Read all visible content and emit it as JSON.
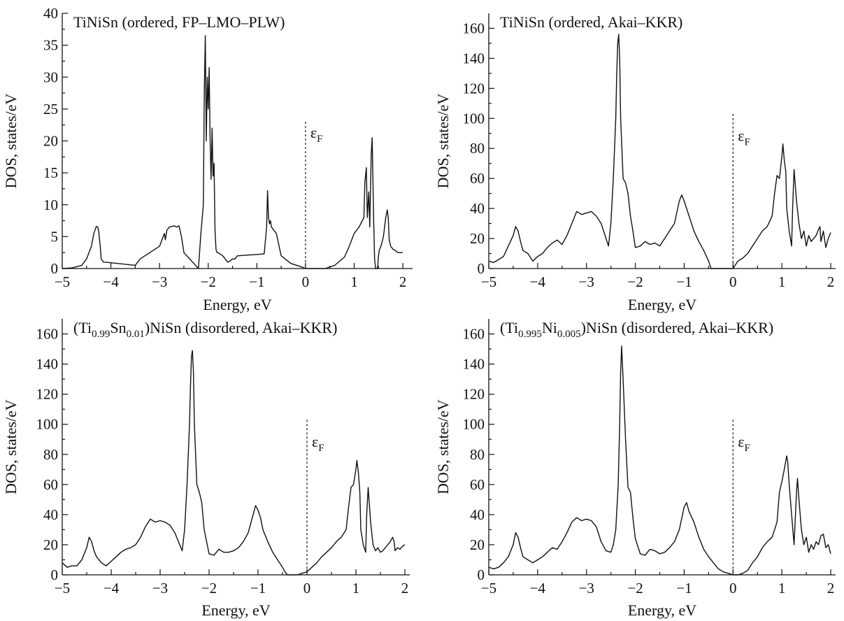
{
  "chart_data": [
    {
      "type": "line",
      "title": "TiNiSn (ordered, FP–LMO–PLW)",
      "title_parts": [
        {
          "text": "TiNiSn (ordered, FP–LMO–PLW)"
        }
      ],
      "xlabel": "Energy, eV",
      "ylabel": "DOS, states/eV",
      "xlim": [
        -5,
        2.2
      ],
      "ylim": [
        0,
        40
      ],
      "xticks": [
        -5,
        -4,
        -3,
        -2,
        -1,
        0,
        1,
        2
      ],
      "xtick_labels": [
        "−5",
        "−4",
        "−3",
        "−2",
        "−1",
        "0",
        "1",
        "2"
      ],
      "yticks": [
        0,
        5,
        10,
        15,
        20,
        25,
        30,
        35,
        40
      ],
      "ytick_labels": [
        "0",
        "5",
        "10",
        "15",
        "20",
        "25",
        "30",
        "35",
        "40"
      ],
      "fermi": {
        "x": 0,
        "y_top": 23,
        "label": "ε",
        "label_sub": "F",
        "label_x": 0.1,
        "label_y": 20.5
      },
      "x": [
        -5.0,
        -4.8,
        -4.6,
        -4.5,
        -4.4,
        -4.35,
        -4.3,
        -4.27,
        -4.25,
        -4.22,
        -4.2,
        -4.15,
        -4.1,
        -3.5,
        -3.4,
        -3.2,
        -3.0,
        -2.9,
        -2.88,
        -2.85,
        -2.8,
        -2.7,
        -2.65,
        -2.6,
        -2.55,
        -2.5,
        -2.2,
        -2.15,
        -2.1,
        -2.08,
        -2.06,
        -2.04,
        -2.02,
        -2.0,
        -1.98,
        -1.96,
        -1.94,
        -1.92,
        -1.9,
        -1.88,
        -1.86,
        -1.84,
        -1.82,
        -1.8,
        -1.7,
        -1.65,
        -1.6,
        -1.55,
        -1.5,
        -1.45,
        -1.4,
        -1.2,
        -1.0,
        -0.85,
        -0.8,
        -0.78,
        -0.76,
        -0.74,
        -0.72,
        -0.7,
        -0.65,
        -0.6,
        -0.5,
        -0.3,
        -0.1,
        0.0,
        0.4,
        0.6,
        0.8,
        0.9,
        1.0,
        1.1,
        1.2,
        1.22,
        1.25,
        1.27,
        1.3,
        1.32,
        1.35,
        1.37,
        1.4,
        1.42,
        1.44,
        1.46,
        1.48,
        1.5,
        1.52,
        1.55,
        1.6,
        1.65,
        1.68,
        1.7,
        1.72,
        1.75,
        1.8,
        1.85,
        1.9,
        2.0
      ],
      "series": [
        {
          "values": [
            0.0,
            0.1,
            0.5,
            1.5,
            3.5,
            5.5,
            6.6,
            6.5,
            5.8,
            3.5,
            1.5,
            1.0,
            1.0,
            0.5,
            1.5,
            2.5,
            3.5,
            5.5,
            4.5,
            6.0,
            6.5,
            6.7,
            6.5,
            6.7,
            5.0,
            2.5,
            0.0,
            5.5,
            10.0,
            28.0,
            36.5,
            20.0,
            30.0,
            25.0,
            31.5,
            20.0,
            14.0,
            22.0,
            14.5,
            16.5,
            6.0,
            3.0,
            2.5,
            2.5,
            2.0,
            1.5,
            1.0,
            1.2,
            1.5,
            1.5,
            2.0,
            2.1,
            2.2,
            2.3,
            6.5,
            12.2,
            8.0,
            7.0,
            7.5,
            6.5,
            6.0,
            5.5,
            2.0,
            0.8,
            0.3,
            0.0,
            0.0,
            0.5,
            1.8,
            3.5,
            5.5,
            6.5,
            8.0,
            13.5,
            15.8,
            8.0,
            12.0,
            6.5,
            18.0,
            20.5,
            8.0,
            1.5,
            0.0,
            0.0,
            0.0,
            2.0,
            3.0,
            3.5,
            5.0,
            8.0,
            9.2,
            8.0,
            4.5,
            3.5,
            3.0,
            2.8,
            2.5,
            2.5
          ]
        }
      ]
    },
    {
      "type": "line",
      "title": "TiNiSn (ordered, Akai–KKR)",
      "title_parts": [
        {
          "text": "TiNiSn (ordered, Akai–KKR)"
        }
      ],
      "xlabel": "Energy, eV",
      "ylabel": "DOS, states/eV",
      "xlim": [
        -5,
        2.1
      ],
      "ylim": [
        0,
        170
      ],
      "xticks": [
        -5,
        -4,
        -3,
        -2,
        -1,
        0,
        1,
        2
      ],
      "xtick_labels": [
        "−5",
        "−4",
        "−3",
        "−2",
        "−1",
        "0",
        "1",
        "2"
      ],
      "yticks": [
        0,
        20,
        40,
        60,
        80,
        100,
        120,
        140,
        160
      ],
      "ytick_labels": [
        "0",
        "20",
        "40",
        "60",
        "80",
        "100",
        "120",
        "140",
        "160"
      ],
      "fermi": {
        "x": 0,
        "y_top": 103,
        "label": "ε",
        "label_sub": "F",
        "label_x": 0.1,
        "label_y": 85
      },
      "x": [
        -5.0,
        -4.9,
        -4.8,
        -4.7,
        -4.6,
        -4.5,
        -4.45,
        -4.4,
        -4.35,
        -4.3,
        -4.2,
        -4.1,
        -4.0,
        -3.9,
        -3.8,
        -3.7,
        -3.6,
        -3.5,
        -3.4,
        -3.3,
        -3.2,
        -3.1,
        -3.0,
        -2.9,
        -2.8,
        -2.7,
        -2.6,
        -2.55,
        -2.5,
        -2.45,
        -2.4,
        -2.38,
        -2.36,
        -2.34,
        -2.32,
        -2.3,
        -2.25,
        -2.2,
        -2.15,
        -2.1,
        -2.05,
        -2.0,
        -1.9,
        -1.8,
        -1.7,
        -1.6,
        -1.5,
        -1.4,
        -1.3,
        -1.2,
        -1.1,
        -1.05,
        -1.0,
        -0.95,
        -0.9,
        -0.8,
        -0.7,
        -0.6,
        -0.5,
        -0.45,
        -0.4,
        -0.2,
        -0.1,
        0.0,
        0.1,
        0.2,
        0.3,
        0.4,
        0.5,
        0.6,
        0.7,
        0.8,
        0.85,
        0.9,
        0.95,
        1.0,
        1.02,
        1.05,
        1.08,
        1.1,
        1.15,
        1.2,
        1.22,
        1.25,
        1.3,
        1.35,
        1.4,
        1.45,
        1.5,
        1.55,
        1.6,
        1.65,
        1.7,
        1.75,
        1.78,
        1.8,
        1.85,
        1.9,
        1.95,
        2.0
      ],
      "series": [
        {
          "values": [
            5.0,
            4.0,
            6.0,
            8.0,
            15.0,
            22.0,
            28.0,
            25.0,
            18.0,
            12.0,
            10.0,
            5.0,
            8.0,
            10.0,
            14.0,
            17.0,
            19.0,
            16.0,
            22.0,
            30.0,
            38.0,
            36.0,
            37.0,
            38.0,
            35.0,
            30.0,
            20.0,
            15.0,
            30.0,
            60.0,
            100.0,
            130.0,
            150.0,
            156.0,
            140.0,
            100.0,
            60.0,
            57.0,
            50.0,
            35.0,
            25.0,
            14.0,
            15.0,
            18.0,
            16.0,
            17.0,
            15.0,
            20.0,
            25.0,
            30.0,
            45.0,
            49.0,
            45.0,
            40.0,
            35.0,
            25.0,
            18.0,
            12.0,
            5.0,
            0.0,
            0.0,
            0.0,
            0.0,
            0.0,
            5.0,
            7.0,
            10.0,
            15.0,
            20.0,
            25.0,
            28.0,
            35.0,
            50.0,
            62.0,
            60.0,
            75.0,
            83.0,
            72.0,
            65.0,
            40.0,
            25.0,
            15.0,
            40.0,
            66.0,
            45.0,
            30.0,
            20.0,
            25.0,
            15.0,
            22.0,
            18.0,
            20.0,
            22.0,
            26.0,
            28.0,
            18.0,
            25.0,
            14.0,
            20.0,
            24.0
          ]
        }
      ]
    },
    {
      "type": "line",
      "title": "(Ti0.99Sn0.01)NiSn (disordered, Akai–KKR)",
      "title_parts": [
        {
          "text": "(Ti"
        },
        {
          "text": "0.99",
          "sub": true
        },
        {
          "text": "Sn"
        },
        {
          "text": "0.01",
          "sub": true
        },
        {
          "text": ")NiSn (disordered, Akai–KKR)"
        }
      ],
      "xlabel": "Energy, eV",
      "ylabel": "DOS, states/eV",
      "xlim": [
        -5,
        2.1
      ],
      "ylim": [
        0,
        170
      ],
      "xticks": [
        -5,
        -4,
        -3,
        -2,
        -1,
        0,
        1,
        2
      ],
      "xtick_labels": [
        "−5",
        "−4",
        "−3",
        "−2",
        "−1",
        "0",
        "1",
        "2"
      ],
      "yticks": [
        0,
        20,
        40,
        60,
        80,
        100,
        120,
        140,
        160
      ],
      "ytick_labels": [
        "0",
        "20",
        "40",
        "60",
        "80",
        "100",
        "120",
        "140",
        "160"
      ],
      "fermi": {
        "x": 0,
        "y_top": 103,
        "label": "ε",
        "label_sub": "F",
        "label_x": 0.1,
        "label_y": 85
      },
      "x": [
        -5.0,
        -4.9,
        -4.8,
        -4.7,
        -4.6,
        -4.5,
        -4.45,
        -4.4,
        -4.35,
        -4.3,
        -4.2,
        -4.1,
        -4.0,
        -3.9,
        -3.8,
        -3.7,
        -3.6,
        -3.5,
        -3.4,
        -3.3,
        -3.2,
        -3.1,
        -3.0,
        -2.9,
        -2.8,
        -2.7,
        -2.6,
        -2.55,
        -2.5,
        -2.45,
        -2.4,
        -2.38,
        -2.36,
        -2.34,
        -2.32,
        -2.3,
        -2.25,
        -2.2,
        -2.15,
        -2.1,
        -2.05,
        -2.0,
        -1.9,
        -1.8,
        -1.7,
        -1.6,
        -1.5,
        -1.4,
        -1.3,
        -1.2,
        -1.1,
        -1.05,
        -1.0,
        -0.95,
        -0.9,
        -0.8,
        -0.7,
        -0.6,
        -0.5,
        -0.45,
        -0.4,
        -0.2,
        -0.1,
        0.0,
        0.1,
        0.2,
        0.3,
        0.4,
        0.5,
        0.6,
        0.7,
        0.8,
        0.85,
        0.9,
        0.95,
        1.0,
        1.02,
        1.05,
        1.08,
        1.1,
        1.15,
        1.2,
        1.22,
        1.25,
        1.3,
        1.35,
        1.4,
        1.45,
        1.5,
        1.55,
        1.6,
        1.65,
        1.7,
        1.75,
        1.78,
        1.8,
        1.85,
        1.9,
        1.95,
        2.0
      ],
      "series": [
        {
          "values": [
            8.0,
            5.0,
            6.0,
            6.0,
            10.0,
            18.0,
            25.0,
            22.0,
            16.0,
            12.0,
            8.0,
            6.0,
            9.0,
            12.0,
            15.0,
            17.0,
            18.0,
            20.0,
            25.0,
            32.0,
            37.0,
            35.0,
            36.0,
            35.0,
            33.0,
            28.0,
            20.0,
            16.0,
            30.0,
            60.0,
            100.0,
            125.0,
            145.0,
            149.0,
            135.0,
            100.0,
            60.0,
            55.0,
            48.0,
            30.0,
            22.0,
            14.0,
            13.0,
            17.0,
            15.0,
            15.0,
            16.0,
            18.0,
            22.0,
            28.0,
            40.0,
            46.0,
            43.0,
            38.0,
            30.0,
            22.0,
            15.0,
            10.0,
            5.0,
            2.0,
            0.0,
            0.0,
            1.0,
            2.0,
            5.0,
            8.0,
            12.0,
            15.0,
            18.0,
            22.0,
            25.0,
            30.0,
            45.0,
            58.0,
            60.0,
            70.0,
            76.0,
            68.0,
            55.0,
            30.0,
            20.0,
            15.0,
            40.0,
            58.0,
            35.0,
            20.0,
            16.0,
            18.0,
            15.0,
            16.0,
            18.0,
            20.0,
            22.0,
            25.0,
            22.0,
            16.0,
            18.0,
            17.0,
            19.0,
            20.0
          ]
        }
      ]
    },
    {
      "type": "line",
      "title": "(Ti0.995Ni0.005)NiSn (disordered, Akai–KKR)",
      "title_parts": [
        {
          "text": "(Ti"
        },
        {
          "text": "0.995",
          "sub": true
        },
        {
          "text": "Ni"
        },
        {
          "text": "0.005",
          "sub": true
        },
        {
          "text": ")NiSn (disordered, Akai–KKR)"
        }
      ],
      "xlabel": "Energy, eV",
      "ylabel": "DOS, states/eV",
      "xlim": [
        -5,
        2.1
      ],
      "ylim": [
        0,
        170
      ],
      "xticks": [
        -5,
        -4,
        -3,
        -2,
        -1,
        0,
        1,
        2
      ],
      "xtick_labels": [
        "−5",
        "−4",
        "−3",
        "−2",
        "−1",
        "0",
        "1",
        "2"
      ],
      "yticks": [
        0,
        20,
        40,
        60,
        80,
        100,
        120,
        140,
        160
      ],
      "ytick_labels": [
        "0",
        "20",
        "40",
        "60",
        "80",
        "100",
        "120",
        "140",
        "160"
      ],
      "fermi": {
        "x": 0,
        "y_top": 103,
        "label": "ε",
        "label_sub": "F",
        "label_x": 0.1,
        "label_y": 85
      },
      "x": [
        -5.0,
        -4.9,
        -4.8,
        -4.7,
        -4.6,
        -4.5,
        -4.45,
        -4.4,
        -4.35,
        -4.3,
        -4.2,
        -4.1,
        -4.0,
        -3.9,
        -3.8,
        -3.7,
        -3.6,
        -3.5,
        -3.4,
        -3.3,
        -3.2,
        -3.1,
        -3.0,
        -2.9,
        -2.8,
        -2.7,
        -2.6,
        -2.5,
        -2.45,
        -2.4,
        -2.35,
        -2.32,
        -2.3,
        -2.28,
        -2.25,
        -2.2,
        -2.15,
        -2.1,
        -2.05,
        -2.0,
        -1.9,
        -1.8,
        -1.7,
        -1.6,
        -1.5,
        -1.4,
        -1.3,
        -1.2,
        -1.1,
        -1.0,
        -0.95,
        -0.9,
        -0.8,
        -0.7,
        -0.6,
        -0.5,
        -0.4,
        -0.3,
        -0.2,
        -0.1,
        0.0,
        0.1,
        0.2,
        0.3,
        0.4,
        0.5,
        0.6,
        0.7,
        0.8,
        0.9,
        0.95,
        1.0,
        1.05,
        1.1,
        1.12,
        1.15,
        1.2,
        1.25,
        1.3,
        1.32,
        1.35,
        1.4,
        1.45,
        1.5,
        1.55,
        1.6,
        1.65,
        1.7,
        1.75,
        1.8,
        1.85,
        1.9,
        1.95,
        2.0
      ],
      "series": [
        {
          "values": [
            5.0,
            4.0,
            5.0,
            8.0,
            12.0,
            20.0,
            28.0,
            25.0,
            18.0,
            12.0,
            10.0,
            8.0,
            10.0,
            12.0,
            15.0,
            18.0,
            17.0,
            22.0,
            28.0,
            35.0,
            38.0,
            36.0,
            37.0,
            36.0,
            32.0,
            22.0,
            16.0,
            15.0,
            20.0,
            30.0,
            60.0,
            100.0,
            135.0,
            152.0,
            130.0,
            90.0,
            58.0,
            55.0,
            38.0,
            24.0,
            14.0,
            13.0,
            17.0,
            16.0,
            14.0,
            15.0,
            18.0,
            22.0,
            30.0,
            45.0,
            48.0,
            42.0,
            35.0,
            25.0,
            17.0,
            12.0,
            8.0,
            4.0,
            2.0,
            1.0,
            0.0,
            0.0,
            1.0,
            3.0,
            8.0,
            12.0,
            18.0,
            22.0,
            25.0,
            35.0,
            55.0,
            62.0,
            70.0,
            79.0,
            75.0,
            60.0,
            40.0,
            20.0,
            55.0,
            64.0,
            50.0,
            30.0,
            20.0,
            25.0,
            15.0,
            20.0,
            17.0,
            22.0,
            20.0,
            26.0,
            27.0,
            18.0,
            20.0,
            14.0
          ]
        }
      ]
    }
  ]
}
